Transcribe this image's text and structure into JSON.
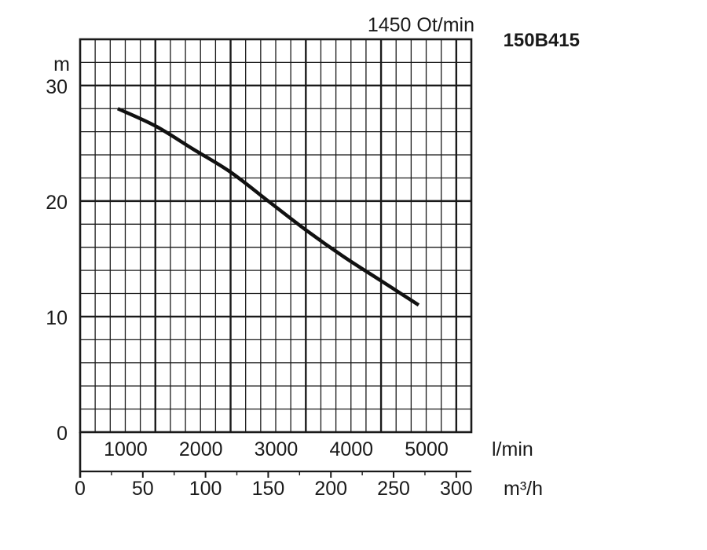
{
  "chart_data": {
    "type": "line",
    "model": "150B415",
    "speed_label": "1450 Ot/min",
    "y_unit": "m",
    "x_unit_primary": "l/min",
    "x_unit_secondary": "m³/h",
    "ylim": [
      0,
      34
    ],
    "xlim": [
      0,
      5200
    ],
    "y_ticks": [
      "0",
      "10",
      "20",
      "30"
    ],
    "x_ticks_primary": [
      "1000",
      "2000",
      "3000",
      "4000",
      "5000"
    ],
    "x_ticks_secondary": [
      "0",
      "50",
      "100",
      "150",
      "200",
      "250",
      "300"
    ],
    "grid": true,
    "series": [
      {
        "x": [
          500,
          1000,
          1500,
          2000,
          2500,
          3000,
          3500,
          4000,
          4500
        ],
        "y": [
          28,
          26.5,
          24.5,
          22.5,
          20,
          17.5,
          15.2,
          13.1,
          11
        ]
      }
    ]
  }
}
